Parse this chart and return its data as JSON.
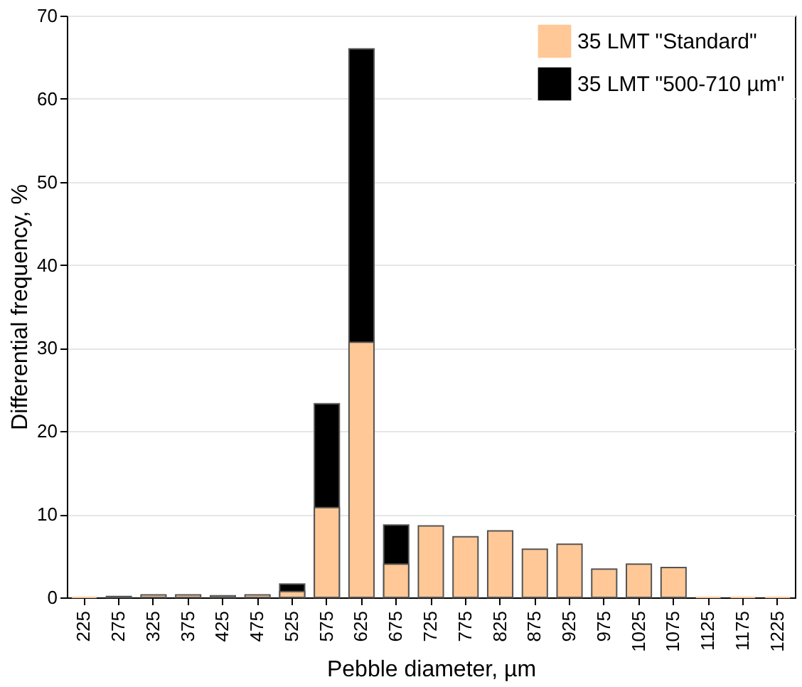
{
  "chart_data": {
    "type": "bar",
    "xlabel": "Pebble diameter, µm",
    "ylabel": "Differential frequency, %",
    "categories": [
      "225",
      "275",
      "325",
      "375",
      "425",
      "475",
      "525",
      "575",
      "625",
      "675",
      "725",
      "775",
      "825",
      "875",
      "925",
      "975",
      "1025",
      "1075",
      "1125",
      "1175",
      "1225"
    ],
    "series": [
      {
        "name": "35 LMT \"Standard\"",
        "color": "#ffc896",
        "values": [
          0,
          0.1,
          0.3,
          0.3,
          0.2,
          0.3,
          0.7,
          10.8,
          30.7,
          4.0,
          8.6,
          7.3,
          8.0,
          5.8,
          6.4,
          3.4,
          4.0,
          3.6,
          0,
          0,
          0
        ]
      },
      {
        "name": "35 LMT \"500-710 µm\"",
        "color": "#000000",
        "values": [
          0,
          0,
          0,
          0,
          0,
          0,
          1.6,
          23.3,
          66.0,
          8.7,
          0,
          0,
          0,
          0,
          0,
          0,
          0,
          0,
          0,
          0,
          0
        ]
      }
    ],
    "ylim": [
      0,
      70
    ],
    "yticks": [
      0,
      10,
      20,
      30,
      40,
      50,
      60,
      70
    ],
    "grid": "y",
    "legend": "top right"
  }
}
